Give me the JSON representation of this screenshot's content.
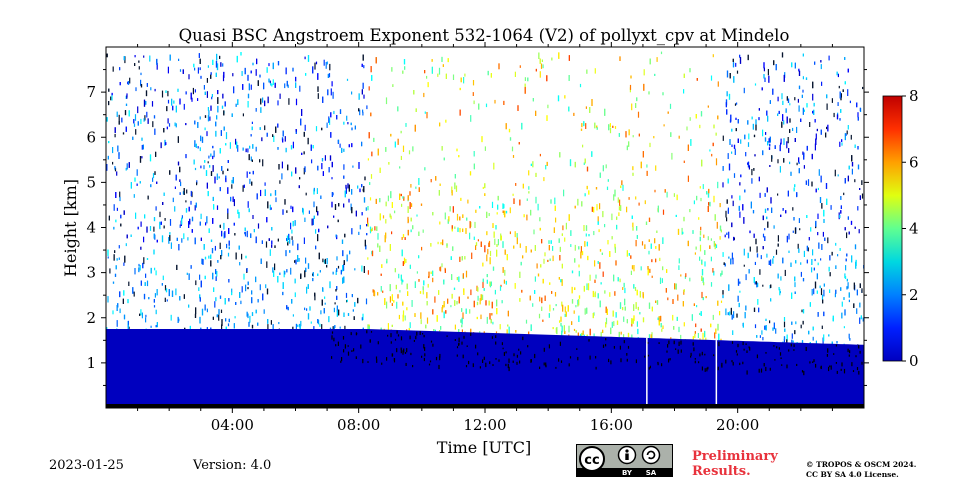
{
  "chart_data": {
    "type": "heatmap",
    "title": "Quasi BSC Angstroem Exponent 532-1064 (V2) of pollyxt_cpv at Mindelo",
    "xlabel": "Time [UTC]",
    "ylabel": "Height [km]",
    "xlim_hours": [
      0,
      24
    ],
    "ylim_km": [
      0,
      8
    ],
    "x_tick_hours": [
      4,
      8,
      12,
      16,
      20
    ],
    "x_tick_labels": [
      "04:00",
      "08:00",
      "12:00",
      "16:00",
      "20:00"
    ],
    "y_ticks": [
      1,
      2,
      3,
      4,
      5,
      6,
      7
    ],
    "y_tick_labels": [
      "1",
      "2",
      "3",
      "4",
      "5",
      "6",
      "7"
    ],
    "colorbar": {
      "range": [
        0,
        8
      ],
      "ticks": [
        0,
        2,
        4,
        6,
        8
      ],
      "tick_labels": [
        "0",
        "2",
        "4",
        "6",
        "8"
      ],
      "colormap": "jet"
    },
    "layers": [
      {
        "name": "boundary layer",
        "bottom_km": 0,
        "top_km_start": 1.75,
        "top_km_mid": 1.5,
        "top_km_end": 1.4,
        "value": 0.5
      },
      {
        "name": "night noise (00:00-08:15)",
        "x_start_hours": 0,
        "x_end_hours": 8.25,
        "value_range": [
          0.5,
          3.0
        ]
      },
      {
        "name": "daytime noise (08:15-19:30)",
        "x_start_hours": 8.25,
        "x_end_hours": 19.5,
        "value_range": [
          3.0,
          6.5
        ]
      },
      {
        "name": "night noise (19:30-24:00)",
        "x_start_hours": 19.5,
        "x_end_hours": 24,
        "value_range": [
          0.5,
          3.0
        ]
      }
    ],
    "data_gaps_hours": [
      17.1,
      19.3
    ]
  },
  "footer": {
    "date": "2023-01-25",
    "version": "Version: 4.0",
    "preliminary_line1": "Preliminary",
    "preliminary_line2": "Results.",
    "copyright_line1": "© TROPOS & OSCM 2024.",
    "copyright_line2": "CC BY SA 4.0 License."
  },
  "license_badge": {
    "cc": "cc",
    "by": "BY",
    "sa": "SA"
  }
}
